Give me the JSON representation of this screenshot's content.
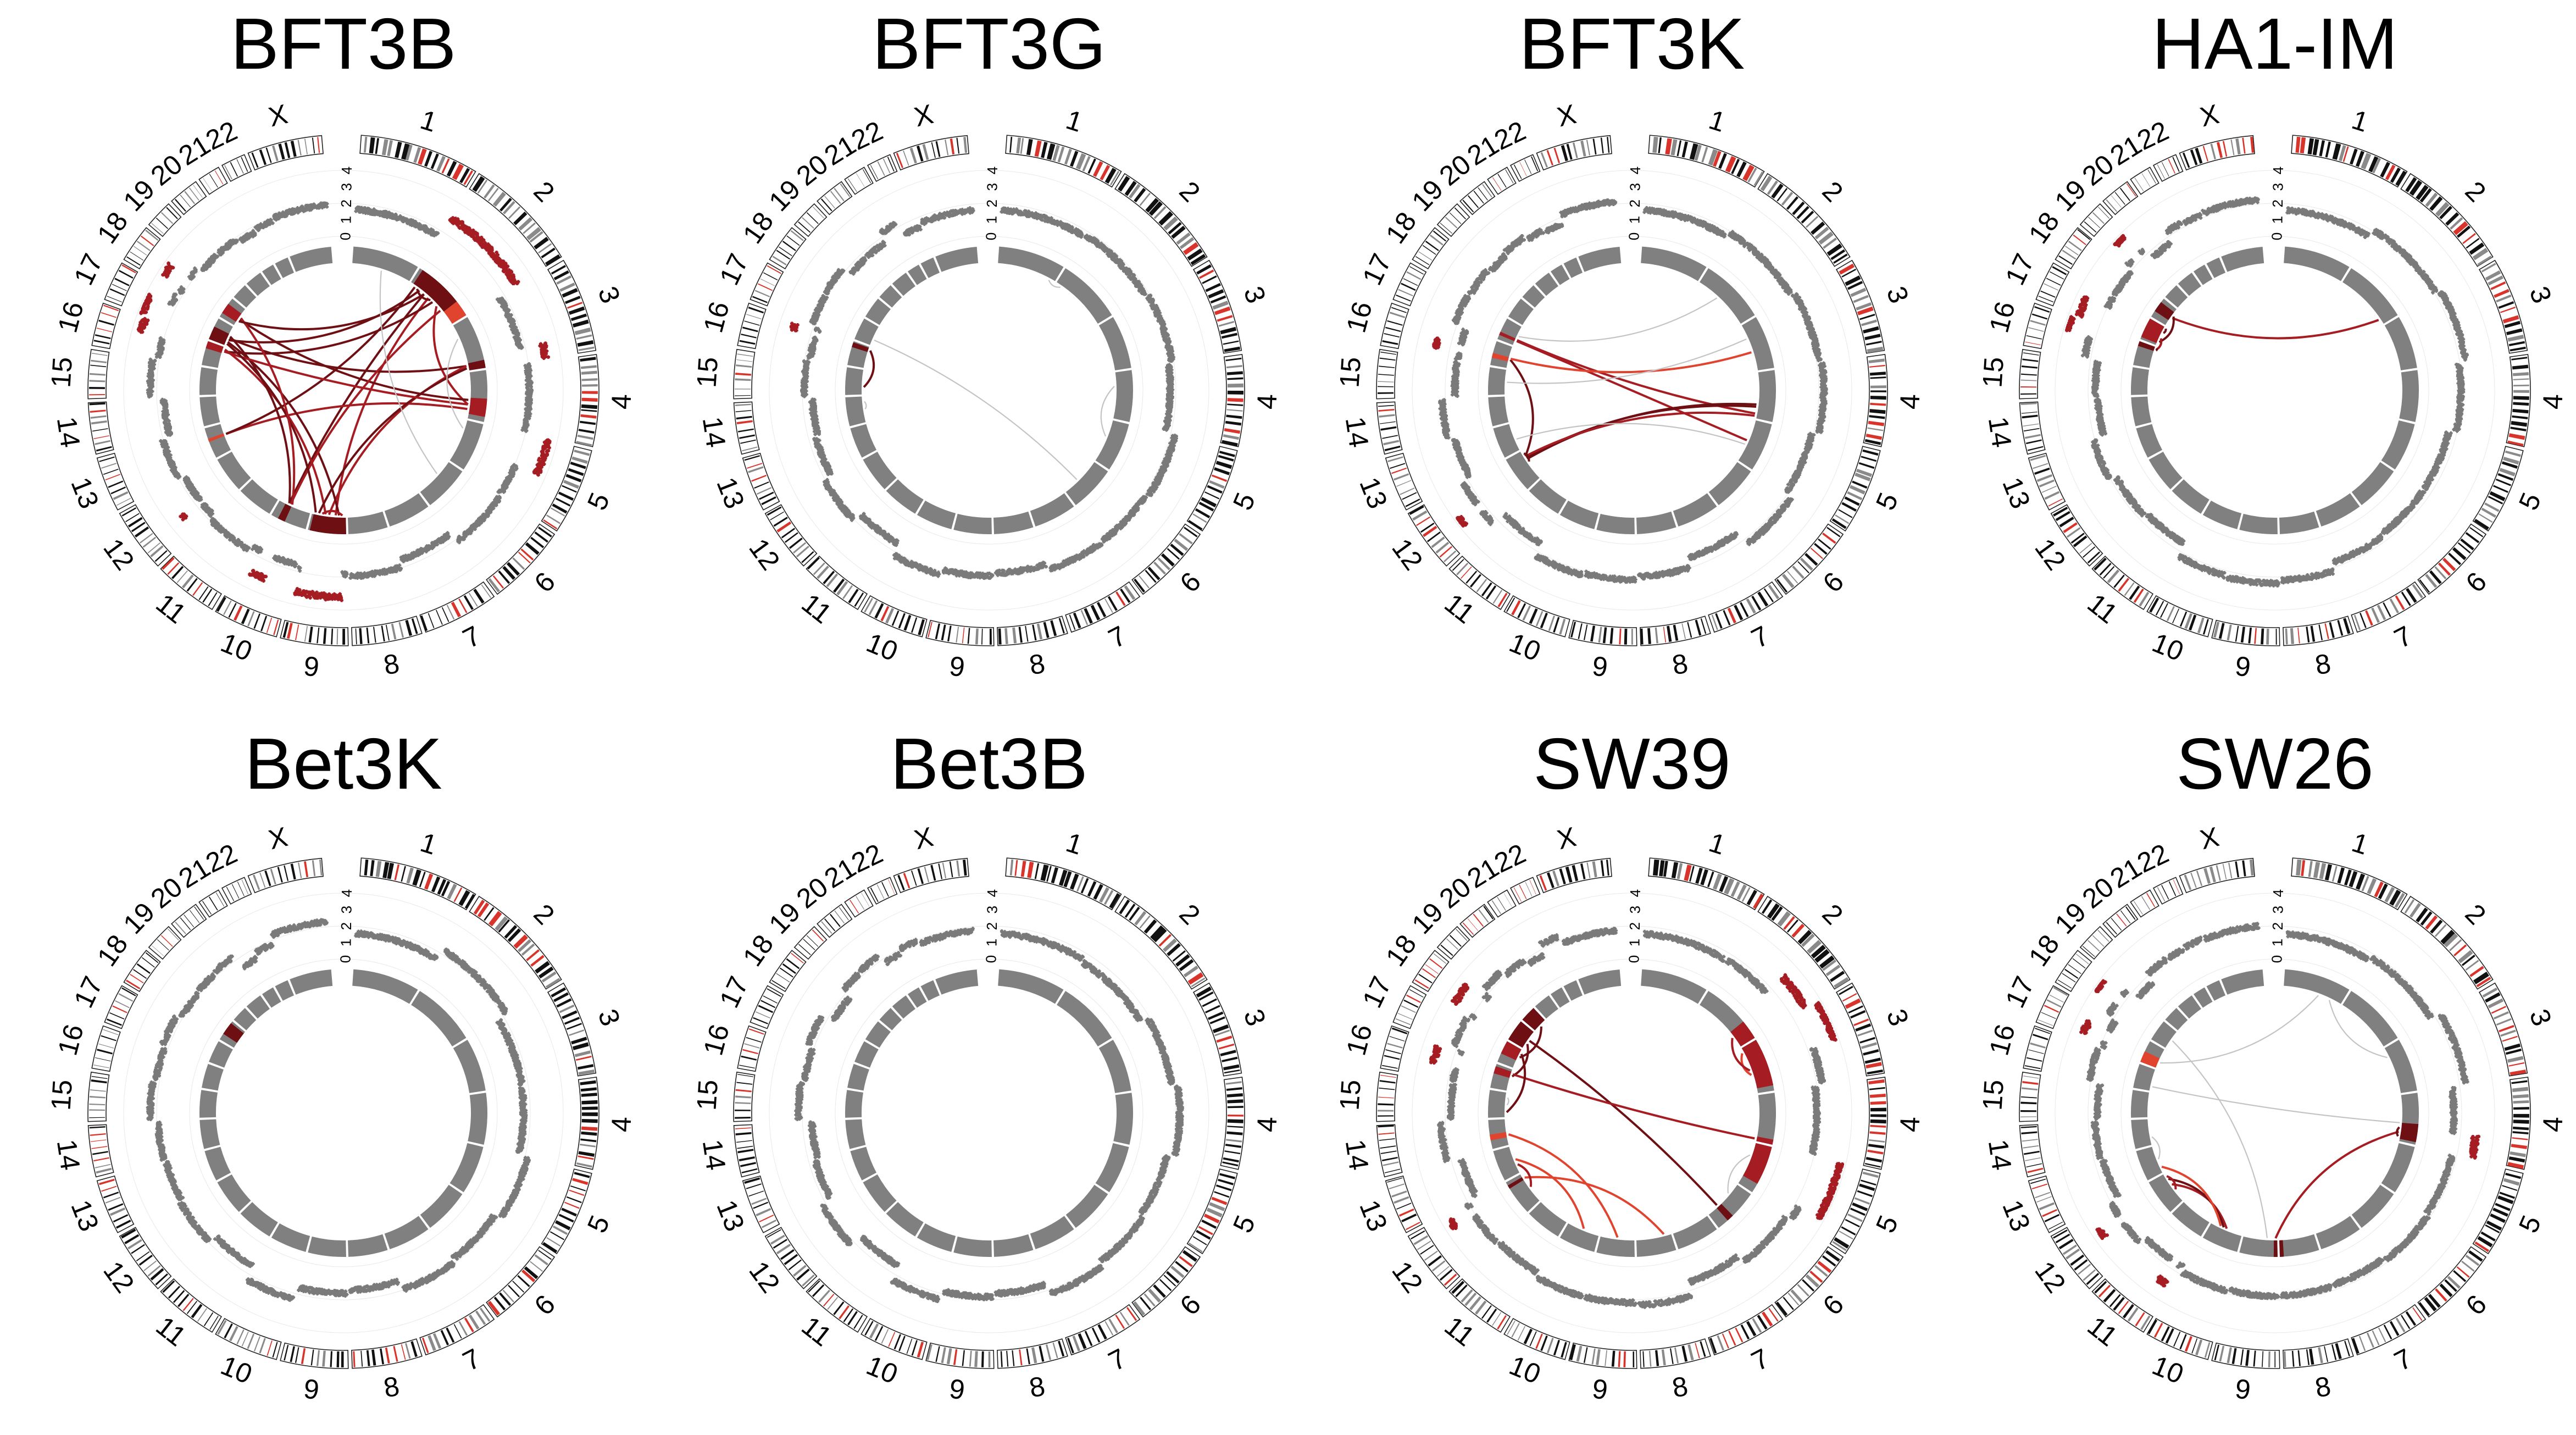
{
  "colors": {
    "background": "#ffffff",
    "segment": "#808080",
    "scatter": "#7a7a7a",
    "link_grey": "#c4c4c4",
    "red_dark": "#6e0f14",
    "red_mid": "#a51c22",
    "red_light": "#e0442f",
    "band_black": "#111111",
    "band_grey": "#8a8a8a",
    "band_red": "#d9342b"
  },
  "chromosomes": [
    "1",
    "2",
    "3",
    "4",
    "5",
    "6",
    "7",
    "8",
    "9",
    "10",
    "11",
    "12",
    "13",
    "14",
    "15",
    "16",
    "17",
    "18",
    "19",
    "20",
    "21",
    "22",
    "X"
  ],
  "chrom_sizes": [
    249,
    243,
    198,
    191,
    181,
    171,
    159,
    146,
    141,
    136,
    135,
    134,
    115,
    107,
    102,
    90,
    83,
    80,
    59,
    64,
    47,
    51,
    156
  ],
  "axis_ticks": [
    "4",
    "3",
    "2",
    "1",
    "0"
  ],
  "panels": [
    {
      "title": "BFT3B",
      "highlights": [
        {
          "chr": 2,
          "start": 0.05,
          "end": 0.75,
          "color": "red_dark"
        },
        {
          "chr": 2,
          "start": 0.75,
          "end": 1.0,
          "color": "red_light"
        },
        {
          "chr": 3,
          "start": 0.85,
          "end": 1.0,
          "color": "red_dark"
        },
        {
          "chr": 4,
          "start": 0.55,
          "end": 0.9,
          "color": "red_mid"
        },
        {
          "chr": 9,
          "start": 0.0,
          "end": 0.95,
          "color": "red_dark"
        },
        {
          "chr": 10,
          "start": 0.6,
          "end": 0.8,
          "color": "red_dark"
        },
        {
          "chr": 13,
          "start": 0.55,
          "end": 0.65,
          "color": "red_light"
        },
        {
          "chr": 16,
          "start": 0.7,
          "end": 1.0,
          "color": "red_mid"
        },
        {
          "chr": 17,
          "start": 0.0,
          "end": 0.6,
          "color": "red_dark"
        },
        {
          "chr": 18,
          "start": 0.2,
          "end": 0.7,
          "color": "red_mid"
        }
      ],
      "links": [
        {
          "a": [
            2,
            0.2
          ],
          "b": [
            17,
            0.3
          ],
          "color": "red_dark"
        },
        {
          "a": [
            2,
            0.4
          ],
          "b": [
            9,
            0.3
          ],
          "color": "red_mid"
        },
        {
          "a": [
            2,
            0.5
          ],
          "b": [
            16,
            0.8
          ],
          "color": "red_dark"
        },
        {
          "a": [
            2,
            0.6
          ],
          "b": [
            4,
            0.7
          ],
          "color": "red_mid"
        },
        {
          "a": [
            2,
            0.3
          ],
          "b": [
            10,
            0.7
          ],
          "color": "red_dark"
        },
        {
          "a": [
            3,
            0.9
          ],
          "b": [
            17,
            0.4
          ],
          "color": "red_dark"
        },
        {
          "a": [
            3,
            0.9
          ],
          "b": [
            9,
            0.5
          ],
          "color": "red_mid"
        },
        {
          "a": [
            4,
            0.6
          ],
          "b": [
            18,
            0.4
          ],
          "color": "red_dark"
        },
        {
          "a": [
            4,
            0.8
          ],
          "b": [
            13,
            0.6
          ],
          "color": "red_mid"
        },
        {
          "a": [
            9,
            0.2
          ],
          "b": [
            17,
            0.2
          ],
          "color": "red_dark"
        },
        {
          "a": [
            9,
            0.6
          ],
          "b": [
            16,
            0.9
          ],
          "color": "red_mid"
        },
        {
          "a": [
            9,
            0.8
          ],
          "b": [
            3,
            0.95
          ],
          "color": "red_dark"
        },
        {
          "a": [
            10,
            0.7
          ],
          "b": [
            17,
            0.5
          ],
          "color": "red_dark"
        },
        {
          "a": [
            10,
            0.65
          ],
          "b": [
            2,
            0.7
          ],
          "color": "red_mid"
        },
        {
          "a": [
            13,
            0.6
          ],
          "b": [
            2,
            0.1
          ],
          "color": "red_dark"
        },
        {
          "a": [
            16,
            0.8
          ],
          "b": [
            4,
            0.7
          ],
          "color": "red_mid"
        },
        {
          "a": [
            17,
            0.1
          ],
          "b": [
            9,
            0.9
          ],
          "color": "red_dark"
        },
        {
          "a": [
            18,
            0.5
          ],
          "b": [
            10,
            0.6
          ],
          "color": "red_mid"
        },
        {
          "a": [
            18,
            0.3
          ],
          "b": [
            2,
            0.3
          ],
          "color": "red_dark"
        },
        {
          "a": [
            2,
            0.15
          ],
          "b": [
            2,
            0.45
          ],
          "color": "red_dark"
        },
        {
          "a": [
            9,
            0.1
          ],
          "b": [
            9,
            0.7
          ],
          "color": "red_mid"
        },
        {
          "a": [
            3,
            0.3
          ],
          "b": [
            5,
            0.2
          ],
          "color": "link_grey"
        },
        {
          "a": [
            6,
            0.4
          ],
          "b": [
            1,
            0.5
          ],
          "color": "link_grey"
        }
      ],
      "scatter_red": [
        {
          "chr": 2,
          "start": 0.0,
          "end": 1.0
        },
        {
          "chr": 3,
          "start": 0.8,
          "end": 1.0
        },
        {
          "chr": 5,
          "start": 0.0,
          "end": 0.5
        },
        {
          "chr": 9,
          "start": 0.1,
          "end": 0.95
        },
        {
          "chr": 10,
          "start": 0.5,
          "end": 0.8
        },
        {
          "chr": 12,
          "start": 0.3,
          "end": 0.4
        },
        {
          "chr": 16,
          "start": 0.6,
          "end": 1.0
        },
        {
          "chr": 17,
          "start": 0.0,
          "end": 0.6
        },
        {
          "chr": 18,
          "start": 0.2,
          "end": 0.6
        }
      ]
    },
    {
      "title": "BFT3G",
      "highlights": [
        {
          "chr": 16,
          "start": 0.75,
          "end": 0.95,
          "color": "red_dark"
        }
      ],
      "links": [
        {
          "a": [
            16,
            0.85
          ],
          "b": [
            15,
            0.3
          ],
          "color": "red_dark"
        },
        {
          "a": [
            17,
            0.3
          ],
          "b": [
            6,
            0.6
          ],
          "color": "link_grey"
        },
        {
          "a": [
            4,
            0.3
          ],
          "b": [
            5,
            0.4
          ],
          "color": "link_grey"
        },
        {
          "a": [
            14,
            0.5
          ],
          "b": [
            14,
            0.8
          ],
          "color": "link_grey"
        },
        {
          "a": [
            1,
            0.9
          ],
          "b": [
            2,
            0.1
          ],
          "color": "link_grey"
        }
      ],
      "scatter_red": [
        {
          "chr": 16,
          "start": 0.7,
          "end": 0.9
        }
      ]
    },
    {
      "title": "BFT3K",
      "highlights": [
        {
          "chr": 16,
          "start": 0.3,
          "end": 0.5,
          "color": "red_light"
        },
        {
          "chr": 17,
          "start": 0.2,
          "end": 0.35,
          "color": "red_mid"
        }
      ],
      "links": [
        {
          "a": [
            17,
            0.25
          ],
          "b": [
            5,
            0.5
          ],
          "color": "red_mid"
        },
        {
          "a": [
            17,
            0.3
          ],
          "b": [
            4,
            0.9
          ],
          "color": "red_mid"
        },
        {
          "a": [
            16,
            0.4
          ],
          "b": [
            12,
            0.8
          ],
          "color": "red_dark"
        },
        {
          "a": [
            12,
            0.7
          ],
          "b": [
            4,
            0.7
          ],
          "color": "red_dark"
        },
        {
          "a": [
            12,
            0.75
          ],
          "b": [
            4,
            0.75
          ],
          "color": "red_dark"
        },
        {
          "a": [
            12,
            0.8
          ],
          "b": [
            4,
            0.95
          ],
          "color": "red_mid"
        },
        {
          "a": [
            12,
            0.6
          ],
          "b": [
            12,
            0.9
          ],
          "color": "red_dark"
        },
        {
          "a": [
            16,
            0.45
          ],
          "b": [
            3,
            0.6
          ],
          "color": "red_light"
        },
        {
          "a": [
            17,
            0.5
          ],
          "b": [
            2,
            0.4
          ],
          "color": "link_grey"
        },
        {
          "a": [
            15,
            0.5
          ],
          "b": [
            3,
            0.3
          ],
          "color": "link_grey"
        },
        {
          "a": [
            13,
            0.4
          ],
          "b": [
            5,
            0.6
          ],
          "color": "link_grey"
        }
      ],
      "scatter_red": [
        {
          "chr": 12,
          "start": 0.3,
          "end": 0.5
        },
        {
          "chr": 16,
          "start": 0.2,
          "end": 0.5
        }
      ]
    },
    {
      "title": "HA1-IM",
      "highlights": [
        {
          "chr": 16,
          "start": 0.8,
          "end": 1.0,
          "color": "red_dark"
        },
        {
          "chr": 17,
          "start": 0.1,
          "end": 1.0,
          "color": "red_mid"
        },
        {
          "chr": 18,
          "start": 0.3,
          "end": 0.8,
          "color": "red_dark"
        }
      ],
      "links": [
        {
          "a": [
            18,
            0.5
          ],
          "b": [
            2,
            0.9
          ],
          "color": "red_mid"
        },
        {
          "a": [
            18,
            0.6
          ],
          "b": [
            17,
            0.2
          ],
          "color": "red_dark"
        },
        {
          "a": [
            17,
            0.4
          ],
          "b": [
            16,
            0.9
          ],
          "color": "red_mid"
        },
        {
          "a": [
            17,
            0.7
          ],
          "b": [
            17,
            0.95
          ],
          "color": "red_dark"
        },
        {
          "a": [
            16,
            0.85
          ],
          "b": [
            16,
            0.95
          ],
          "color": "red_dark"
        }
      ],
      "scatter_red": [
        {
          "chr": 16,
          "start": 0.6,
          "end": 1.0
        },
        {
          "chr": 17,
          "start": 0.0,
          "end": 0.6
        },
        {
          "chr": 19,
          "start": 0.3,
          "end": 0.8
        }
      ]
    },
    {
      "title": "Bet3K",
      "highlights": [
        {
          "chr": 18,
          "start": 0.3,
          "end": 0.9,
          "color": "red_dark"
        }
      ],
      "links": [],
      "scatter_red": []
    },
    {
      "title": "Bet3B",
      "highlights": [],
      "links": [],
      "scatter_red": []
    },
    {
      "title": "SW39",
      "highlights": [
        {
          "chr": 2,
          "start": 0.7,
          "end": 1.0,
          "color": "red_mid"
        },
        {
          "chr": 3,
          "start": 0.0,
          "end": 0.9,
          "color": "red_mid"
        },
        {
          "chr": 4,
          "start": 0.9,
          "end": 1.0,
          "color": "red_mid"
        },
        {
          "chr": 5,
          "start": 0.0,
          "end": 0.8,
          "color": "red_mid"
        },
        {
          "chr": 6,
          "start": 0.6,
          "end": 0.75,
          "color": "red_dark"
        },
        {
          "chr": 12,
          "start": 0.8,
          "end": 0.9,
          "color": "red_dark"
        },
        {
          "chr": 14,
          "start": 0.3,
          "end": 0.5,
          "color": "red_light"
        },
        {
          "chr": 16,
          "start": 0.6,
          "end": 0.9,
          "color": "red_mid"
        },
        {
          "chr": 17,
          "start": 0.4,
          "end": 1.0,
          "color": "red_mid"
        },
        {
          "chr": 18,
          "start": 0.0,
          "end": 1.0,
          "color": "red_dark"
        },
        {
          "chr": 19,
          "start": 0.0,
          "end": 1.0,
          "color": "red_dark"
        }
      ],
      "links": [
        {
          "a": [
            18,
            0.5
          ],
          "b": [
            6,
            0.7
          ],
          "color": "red_dark"
        },
        {
          "a": [
            18,
            0.3
          ],
          "b": [
            16,
            0.7
          ],
          "color": "red_dark"
        },
        {
          "a": [
            19,
            0.5
          ],
          "b": [
            17,
            0.6
          ],
          "color": "red_dark"
        },
        {
          "a": [
            16,
            0.8
          ],
          "b": [
            4,
            0.95
          ],
          "color": "red_mid"
        },
        {
          "a": [
            3,
            0.1
          ],
          "b": [
            3,
            0.6
          ],
          "color": "red_light"
        },
        {
          "a": [
            2,
            0.8
          ],
          "b": [
            3,
            0.5
          ],
          "color": "red_mid"
        },
        {
          "a": [
            17,
            0.8
          ],
          "b": [
            15,
            0.2
          ],
          "color": "red_dark"
        },
        {
          "a": [
            12,
            0.85
          ],
          "b": [
            8,
            0.2
          ],
          "color": "red_light"
        },
        {
          "a": [
            13,
            0.5
          ],
          "b": [
            10,
            0.5
          ],
          "color": "red_light"
        },
        {
          "a": [
            13,
            0.3
          ],
          "b": [
            12,
            0.5
          ],
          "color": "red_mid"
        },
        {
          "a": [
            14,
            0.4
          ],
          "b": [
            9,
            0.5
          ],
          "color": "red_light"
        },
        {
          "a": [
            5,
            0.3
          ],
          "b": [
            6,
            0.3
          ],
          "color": "link_grey"
        },
        {
          "a": [
            15,
            0.5
          ],
          "b": [
            15,
            0.8
          ],
          "color": "link_grey"
        }
      ],
      "scatter_red": [
        {
          "chr": 2,
          "start": 0.6,
          "end": 1.0
        },
        {
          "chr": 3,
          "start": 0.0,
          "end": 0.5
        },
        {
          "chr": 5,
          "start": 0.0,
          "end": 0.8
        },
        {
          "chr": 12,
          "start": 0.7,
          "end": 0.9
        },
        {
          "chr": 16,
          "start": 0.4,
          "end": 0.9
        },
        {
          "chr": 18,
          "start": 0.1,
          "end": 0.8
        }
      ]
    },
    {
      "title": "SW26",
      "highlights": [
        {
          "chr": 4,
          "start": 0.6,
          "end": 0.95,
          "color": "red_dark"
        },
        {
          "chr": 8,
          "start": 0.9,
          "end": 1.0,
          "color": "red_dark"
        },
        {
          "chr": 9,
          "start": 0.0,
          "end": 0.1,
          "color": "red_dark"
        },
        {
          "chr": 17,
          "start": 0.0,
          "end": 0.5,
          "color": "red_light"
        }
      ],
      "links": [
        {
          "a": [
            9,
            0.05
          ],
          "b": [
            4,
            0.8
          ],
          "color": "red_mid"
        },
        {
          "a": [
            10,
            0.5
          ],
          "b": [
            12,
            0.6
          ],
          "color": "red_mid"
        },
        {
          "a": [
            10,
            0.6
          ],
          "b": [
            12,
            0.8
          ],
          "color": "red_dark"
        },
        {
          "a": [
            10,
            0.7
          ],
          "b": [
            13,
            0.2
          ],
          "color": "red_light"
        },
        {
          "a": [
            12,
            0.4
          ],
          "b": [
            12,
            0.9
          ],
          "color": "red_mid"
        },
        {
          "a": [
            4,
            0.7
          ],
          "b": [
            4,
            0.9
          ],
          "color": "red_dark"
        },
        {
          "a": [
            17,
            0.3
          ],
          "b": [
            1,
            0.6
          ],
          "color": "link_grey"
        },
        {
          "a": [
            1,
            0.8
          ],
          "b": [
            3,
            0.2
          ],
          "color": "link_grey"
        },
        {
          "a": [
            13,
            0.5
          ],
          "b": [
            14,
            0.3
          ],
          "color": "link_grey"
        },
        {
          "a": [
            16,
            0.2
          ],
          "b": [
            4,
            0.6
          ],
          "color": "link_grey"
        },
        {
          "a": [
            9,
            0.3
          ],
          "b": [
            18,
            0.5
          ],
          "color": "link_grey"
        }
      ],
      "scatter_red": [
        {
          "chr": 4,
          "start": 0.7,
          "end": 1.0
        },
        {
          "chr": 11,
          "start": 0.1,
          "end": 0.3
        },
        {
          "chr": 12,
          "start": 0.5,
          "end": 0.7
        },
        {
          "chr": 17,
          "start": 0.2,
          "end": 0.6
        },
        {
          "chr": 18,
          "start": 0.4,
          "end": 0.8
        }
      ]
    }
  ]
}
